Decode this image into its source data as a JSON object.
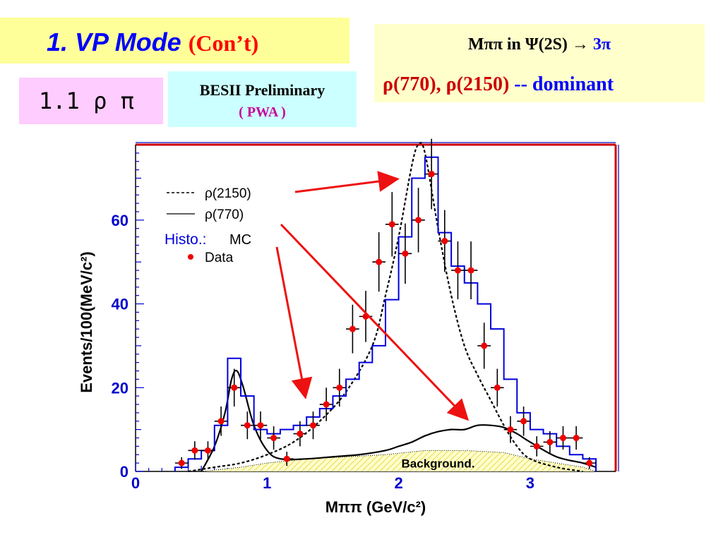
{
  "header": {
    "title": "1. VP Mode",
    "title_suffix": "(Con’t)",
    "subsection": "1.1  ρ π",
    "besii_line1": "BESII Preliminary",
    "besii_line2": "( PWA )",
    "info_line1_prefix": "Mππ  in Ψ(2S) → ",
    "info_line1_suffix": "3π",
    "info_line2_prefix": "ρ(770),   ρ(2150) ",
    "info_line2_suffix": " -- dominant"
  },
  "chart_data": {
    "type": "histogram",
    "xlabel": "Mππ (GeV/c²)",
    "ylabel": "Events/100(MeV/c²)",
    "xlim": [
      0,
      3.65
    ],
    "ylim": [
      0,
      78
    ],
    "xticks": [
      0,
      1,
      2,
      3
    ],
    "yticks": [
      0,
      20,
      40,
      60
    ],
    "legend": [
      {
        "label": "ρ(2150)",
        "style": "dashed"
      },
      {
        "label": "ρ(770)",
        "style": "solid"
      },
      {
        "label_a": "Histo.:",
        "label_b": "MC",
        "style": "histogram"
      },
      {
        "label": "Data",
        "style": "marker"
      }
    ],
    "background_label": "Background.",
    "data_points": [
      {
        "x": 0.35,
        "y": 2,
        "err": 1.4
      },
      {
        "x": 0.45,
        "y": 5,
        "err": 2.2
      },
      {
        "x": 0.55,
        "y": 5,
        "err": 2.2
      },
      {
        "x": 0.65,
        "y": 12,
        "err": 3.5
      },
      {
        "x": 0.75,
        "y": 20,
        "err": 4.5
      },
      {
        "x": 0.85,
        "y": 11,
        "err": 3.3
      },
      {
        "x": 0.95,
        "y": 11,
        "err": 3.3
      },
      {
        "x": 1.05,
        "y": 8,
        "err": 2.8
      },
      {
        "x": 1.15,
        "y": 3,
        "err": 1.7
      },
      {
        "x": 1.25,
        "y": 9,
        "err": 3.0
      },
      {
        "x": 1.35,
        "y": 11,
        "err": 3.3
      },
      {
        "x": 1.45,
        "y": 16,
        "err": 4.0
      },
      {
        "x": 1.55,
        "y": 20,
        "err": 4.5
      },
      {
        "x": 1.65,
        "y": 34,
        "err": 5.8
      },
      {
        "x": 1.75,
        "y": 37,
        "err": 6.1
      },
      {
        "x": 1.85,
        "y": 50,
        "err": 7.1
      },
      {
        "x": 1.95,
        "y": 59,
        "err": 7.7
      },
      {
        "x": 2.05,
        "y": 52,
        "err": 7.2
      },
      {
        "x": 2.15,
        "y": 60,
        "err": 7.7
      },
      {
        "x": 2.25,
        "y": 71,
        "err": 8.4
      },
      {
        "x": 2.35,
        "y": 55,
        "err": 7.4
      },
      {
        "x": 2.45,
        "y": 48,
        "err": 6.9
      },
      {
        "x": 2.55,
        "y": 48,
        "err": 6.9
      },
      {
        "x": 2.65,
        "y": 30,
        "err": 5.5
      },
      {
        "x": 2.75,
        "y": 20,
        "err": 4.5
      },
      {
        "x": 2.85,
        "y": 10,
        "err": 3.2
      },
      {
        "x": 2.95,
        "y": 12,
        "err": 3.5
      },
      {
        "x": 3.05,
        "y": 6,
        "err": 2.4
      },
      {
        "x": 3.15,
        "y": 7,
        "err": 2.6
      },
      {
        "x": 3.25,
        "y": 8,
        "err": 2.8
      },
      {
        "x": 3.35,
        "y": 8,
        "err": 2.8
      },
      {
        "x": 3.45,
        "y": 2,
        "err": 1.4
      }
    ],
    "mc_histogram": {
      "bin_edges": [
        0.3,
        0.4,
        0.5,
        0.6,
        0.7,
        0.8,
        0.9,
        1.0,
        1.1,
        1.2,
        1.3,
        1.4,
        1.5,
        1.6,
        1.7,
        1.8,
        1.9,
        2.0,
        2.1,
        2.2,
        2.3,
        2.4,
        2.5,
        2.6,
        2.7,
        2.8,
        2.9,
        3.0,
        3.1,
        3.2,
        3.3,
        3.4,
        3.5
      ],
      "values": [
        1,
        3,
        5,
        11,
        27,
        18,
        10,
        9,
        10,
        11,
        13,
        15,
        18,
        22,
        26,
        30,
        41,
        56,
        70,
        75,
        57,
        49,
        45,
        40,
        34,
        22,
        14,
        10,
        9,
        6,
        4,
        3
      ]
    },
    "rho2150_curve": [
      [
        0.4,
        0
      ],
      [
        0.6,
        1
      ],
      [
        0.8,
        2
      ],
      [
        1.0,
        4
      ],
      [
        1.2,
        7
      ],
      [
        1.4,
        12
      ],
      [
        1.6,
        19
      ],
      [
        1.8,
        30
      ],
      [
        1.9,
        42
      ],
      [
        2.0,
        56
      ],
      [
        2.1,
        73
      ],
      [
        2.15,
        78
      ],
      [
        2.2,
        76
      ],
      [
        2.3,
        58
      ],
      [
        2.4,
        42
      ],
      [
        2.5,
        30
      ],
      [
        2.6,
        23
      ],
      [
        2.7,
        17
      ],
      [
        2.8,
        11
      ],
      [
        2.9,
        6
      ],
      [
        3.0,
        3
      ],
      [
        3.2,
        1
      ],
      [
        3.4,
        0
      ]
    ],
    "rho770_curve": [
      [
        0.5,
        0
      ],
      [
        0.6,
        6
      ],
      [
        0.68,
        14
      ],
      [
        0.73,
        22
      ],
      [
        0.77,
        24
      ],
      [
        0.82,
        20
      ],
      [
        0.9,
        11
      ],
      [
        1.0,
        5
      ],
      [
        1.1,
        3
      ],
      [
        1.3,
        3
      ],
      [
        1.5,
        3.5
      ],
      [
        1.7,
        4
      ],
      [
        1.9,
        5
      ],
      [
        2.0,
        6
      ],
      [
        2.1,
        7
      ],
      [
        2.2,
        8.5
      ],
      [
        2.3,
        9.5
      ],
      [
        2.4,
        10
      ],
      [
        2.5,
        10
      ],
      [
        2.6,
        11
      ],
      [
        2.7,
        11
      ],
      [
        2.8,
        10.5
      ],
      [
        2.9,
        9
      ],
      [
        3.0,
        7
      ],
      [
        3.2,
        3.5
      ],
      [
        3.4,
        2
      ],
      [
        3.5,
        1
      ]
    ],
    "background_curve": [
      [
        0.5,
        0
      ],
      [
        0.8,
        1
      ],
      [
        1.0,
        2
      ],
      [
        1.3,
        3
      ],
      [
        1.6,
        3.5
      ],
      [
        1.9,
        4
      ],
      [
        2.2,
        5
      ],
      [
        2.5,
        5
      ],
      [
        2.8,
        4.5
      ],
      [
        3.0,
        3
      ],
      [
        3.2,
        2
      ],
      [
        3.4,
        1
      ],
      [
        3.5,
        0
      ]
    ]
  }
}
